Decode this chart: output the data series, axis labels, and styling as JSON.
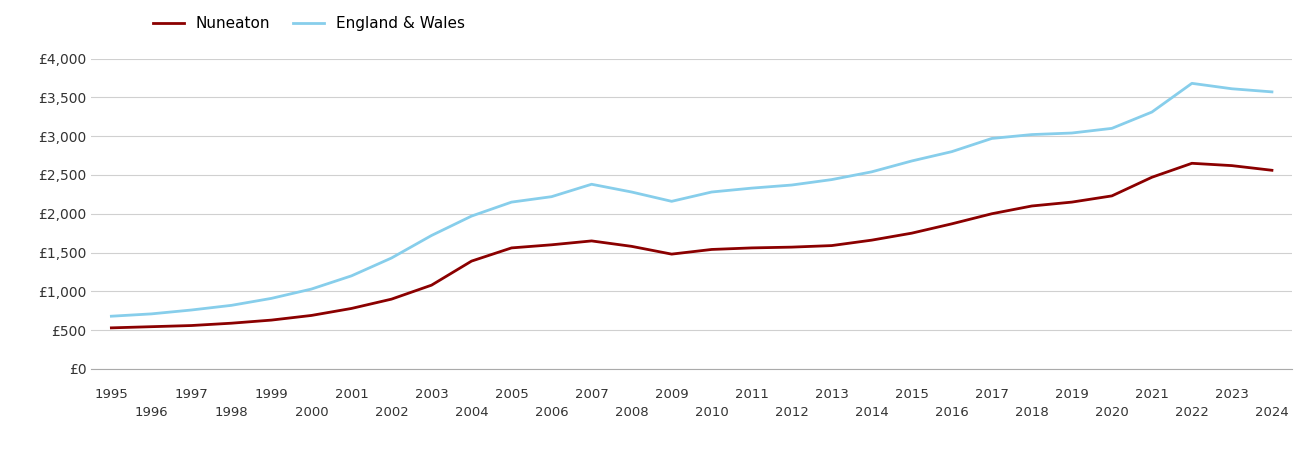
{
  "nuneaton_years": [
    1995,
    1996,
    1997,
    1998,
    1999,
    2000,
    2001,
    2002,
    2003,
    2004,
    2005,
    2006,
    2007,
    2008,
    2009,
    2010,
    2011,
    2012,
    2013,
    2014,
    2015,
    2016,
    2017,
    2018,
    2019,
    2020,
    2021,
    2022,
    2023,
    2024
  ],
  "nuneaton_values": [
    530,
    545,
    560,
    590,
    630,
    690,
    780,
    900,
    1080,
    1390,
    1560,
    1600,
    1650,
    1580,
    1480,
    1540,
    1560,
    1570,
    1590,
    1660,
    1750,
    1870,
    2000,
    2100,
    2150,
    2230,
    2470,
    2650,
    2620,
    2560
  ],
  "ew_years": [
    1995,
    1996,
    1997,
    1998,
    1999,
    2000,
    2001,
    2002,
    2003,
    2004,
    2005,
    2006,
    2007,
    2008,
    2009,
    2010,
    2011,
    2012,
    2013,
    2014,
    2015,
    2016,
    2017,
    2018,
    2019,
    2020,
    2021,
    2022,
    2023,
    2024
  ],
  "ew_values": [
    680,
    710,
    760,
    820,
    910,
    1030,
    1200,
    1430,
    1720,
    1970,
    2150,
    2220,
    2380,
    2280,
    2160,
    2280,
    2330,
    2370,
    2440,
    2540,
    2680,
    2800,
    2970,
    3020,
    3040,
    3100,
    3310,
    3680,
    3610,
    3570
  ],
  "nuneaton_color": "#8b0000",
  "ew_color": "#87CEEB",
  "nuneaton_label": "Nuneaton",
  "ew_label": "England & Wales",
  "ylim": [
    0,
    4000
  ],
  "yticks": [
    0,
    500,
    1000,
    1500,
    2000,
    2500,
    3000,
    3500,
    4000
  ],
  "ytick_labels": [
    "£0",
    "£500",
    "£1,000",
    "£1,500",
    "£2,000",
    "£2,500",
    "£3,000",
    "£3,500",
    "£4,000"
  ],
  "xlim_min": 1994.5,
  "xlim_max": 2024.5,
  "xticks_top": [
    1995,
    1997,
    1999,
    2001,
    2003,
    2005,
    2007,
    2009,
    2011,
    2013,
    2015,
    2017,
    2019,
    2021,
    2023
  ],
  "xticks_bottom": [
    1996,
    1998,
    2000,
    2002,
    2004,
    2006,
    2008,
    2010,
    2012,
    2014,
    2016,
    2018,
    2020,
    2022,
    2024
  ],
  "line_width": 2.0,
  "background_color": "#ffffff",
  "grid_color": "#d0d0d0"
}
